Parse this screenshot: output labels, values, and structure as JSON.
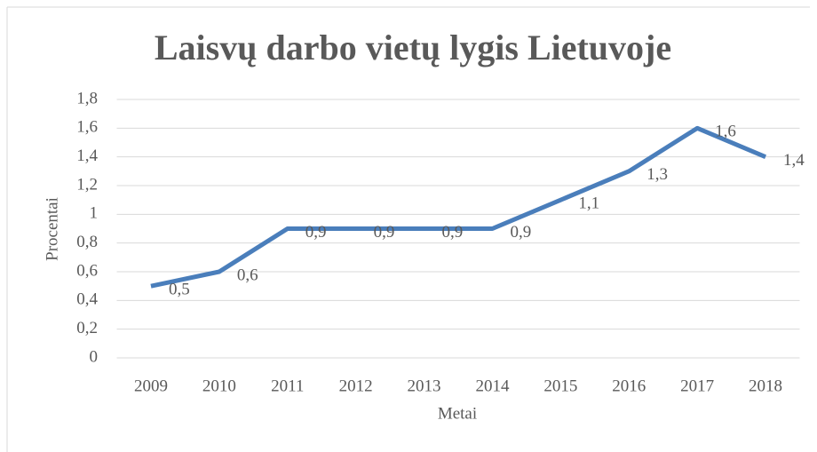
{
  "chart_data": {
    "type": "line",
    "title": "Laisvų darbo vietų lygis Lietuvoje",
    "x_label": "Metai",
    "y_label": "Procentai",
    "categories": [
      "2009",
      "2010",
      "2011",
      "2012",
      "2013",
      "2014",
      "2015",
      "2016",
      "2017",
      "2018"
    ],
    "series": [
      {
        "name": "Laisvų darbo vietų lygis",
        "color": "#4a7ebb",
        "values": [
          0.5,
          0.6,
          0.9,
          0.9,
          0.9,
          0.9,
          1.1,
          1.3,
          1.6,
          1.4
        ],
        "value_labels": [
          "0,5",
          "0,6",
          "0,9",
          "0,9",
          "0,9",
          "0,9",
          "1,1",
          "1,3",
          "1,6",
          "1,4"
        ]
      }
    ],
    "ylim": [
      0,
      1.8
    ],
    "yticks": [
      0,
      {
        "value": 0.2,
        "label": "0,2"
      },
      {
        "value": 0.4,
        "label": "0,4"
      },
      {
        "value": 0.6,
        "label": "0,6"
      },
      {
        "value": 0.8,
        "label": "0,8"
      },
      1,
      {
        "value": 1.2,
        "label": "1,2"
      },
      {
        "value": 1.4,
        "label": "1,4"
      },
      {
        "value": 1.6,
        "label": "1,6"
      },
      {
        "value": 1.8,
        "label": "1,8"
      }
    ],
    "grid": true
  }
}
